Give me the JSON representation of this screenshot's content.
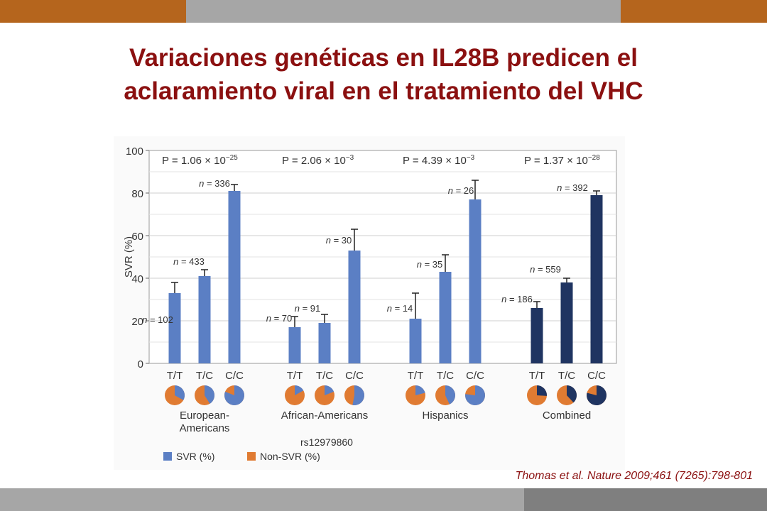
{
  "slide": {
    "title_line1": "Variaciones genéticas en IL28B predicen el",
    "title_line2": "aclaramiento viral en el tratamiento del VHC",
    "citation": "Thomas et al. Nature 2009;461 (7265):798-801",
    "accent_color": "#B5651D",
    "band_color": "#A6A6A6",
    "title_color": "#8B1010"
  },
  "chart_data": {
    "type": "bar",
    "ylabel": "SVR (%)",
    "ylim": [
      0,
      100
    ],
    "yticks": [
      "0",
      "20",
      "40",
      "60",
      "80",
      "100"
    ],
    "xlabel": "rs12979860",
    "grid": true,
    "legend": [
      {
        "label": "SVR (%)",
        "color": "#5B7FC4"
      },
      {
        "label": "Non-SVR (%)",
        "color": "#E07B32"
      }
    ],
    "groups": [
      {
        "name": "European-\nAmericans",
        "name_lines": [
          "European-",
          "Americans"
        ],
        "p_prefix": "P = 1.06 × 10",
        "p_exp": "−25",
        "color": "#5B7FC4",
        "bars": [
          {
            "genotype": "T/T",
            "value": 33,
            "err": 5,
            "n_label": "n = 102"
          },
          {
            "genotype": "T/C",
            "value": 41,
            "err": 3,
            "n_label": "n = 433"
          },
          {
            "genotype": "C/C",
            "value": 81,
            "err": 3,
            "n_label": "n = 336"
          }
        ]
      },
      {
        "name": "African-Americans",
        "name_lines": [
          "African-Americans"
        ],
        "p_prefix": "P = 2.06 × 10",
        "p_exp": "−3",
        "color": "#5B7FC4",
        "bars": [
          {
            "genotype": "T/T",
            "value": 17,
            "err": 5,
            "n_label": "n = 70"
          },
          {
            "genotype": "T/C",
            "value": 19,
            "err": 4,
            "n_label": "n = 91"
          },
          {
            "genotype": "C/C",
            "value": 53,
            "err": 10,
            "n_label": "n = 30"
          }
        ]
      },
      {
        "name": "Hispanics",
        "name_lines": [
          "Hispanics"
        ],
        "p_prefix": "P = 4.39 × 10",
        "p_exp": "−3",
        "color": "#5B7FC4",
        "bars": [
          {
            "genotype": "T/T",
            "value": 21,
            "err": 12,
            "n_label": "n = 14"
          },
          {
            "genotype": "T/C",
            "value": 43,
            "err": 8,
            "n_label": "n = 35"
          },
          {
            "genotype": "C/C",
            "value": 77,
            "err": 9,
            "n_label": "n = 26"
          }
        ]
      },
      {
        "name": "Combined",
        "name_lines": [
          "Combined"
        ],
        "p_prefix": "P = 1.37 × 10",
        "p_exp": "−28",
        "color": "#1F3461",
        "bars": [
          {
            "genotype": "T/T",
            "value": 26,
            "err": 3,
            "n_label": "n = 186"
          },
          {
            "genotype": "T/C",
            "value": 38,
            "err": 2,
            "n_label": "n = 559"
          },
          {
            "genotype": "C/C",
            "value": 79,
            "err": 2,
            "n_label": "n = 392"
          }
        ]
      }
    ]
  }
}
